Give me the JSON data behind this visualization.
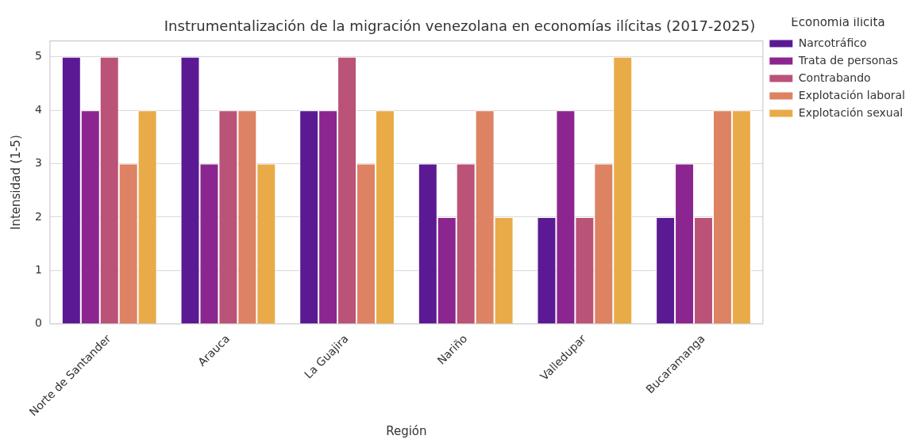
{
  "chart_data": {
    "type": "bar",
    "title": "Instrumentalización de la migración venezolana en economías ilícitas (2017-2025)",
    "xlabel": "Región",
    "ylabel": "Intensidad (1-5)",
    "legend_title": "Economía ilícita",
    "legend": "top right",
    "grid": "y",
    "categories": [
      "Norte de Santander",
      "Arauca",
      "La Guajira",
      "Nariño",
      "Valledupar",
      "Bucaramanga"
    ],
    "ylim": [
      0,
      5.3
    ],
    "yticks": [
      0,
      1,
      2,
      3,
      4,
      5
    ],
    "series": [
      {
        "name": "Narcotráfico",
        "color": "#5b1a93",
        "values": [
          5,
          5,
          4,
          3,
          2,
          2
        ]
      },
      {
        "name": "Trata de personas",
        "color": "#8b2590",
        "values": [
          4,
          3,
          4,
          2,
          4,
          3
        ]
      },
      {
        "name": "Contrabando",
        "color": "#bb5277",
        "values": [
          5,
          4,
          5,
          3,
          2,
          2
        ]
      },
      {
        "name": "Explotación laboral",
        "color": "#dd8262",
        "values": [
          3,
          4,
          3,
          4,
          3,
          4
        ]
      },
      {
        "name": "Explotación sexual",
        "color": "#e8ab48",
        "values": [
          4,
          3,
          4,
          2,
          5,
          4
        ]
      }
    ]
  }
}
